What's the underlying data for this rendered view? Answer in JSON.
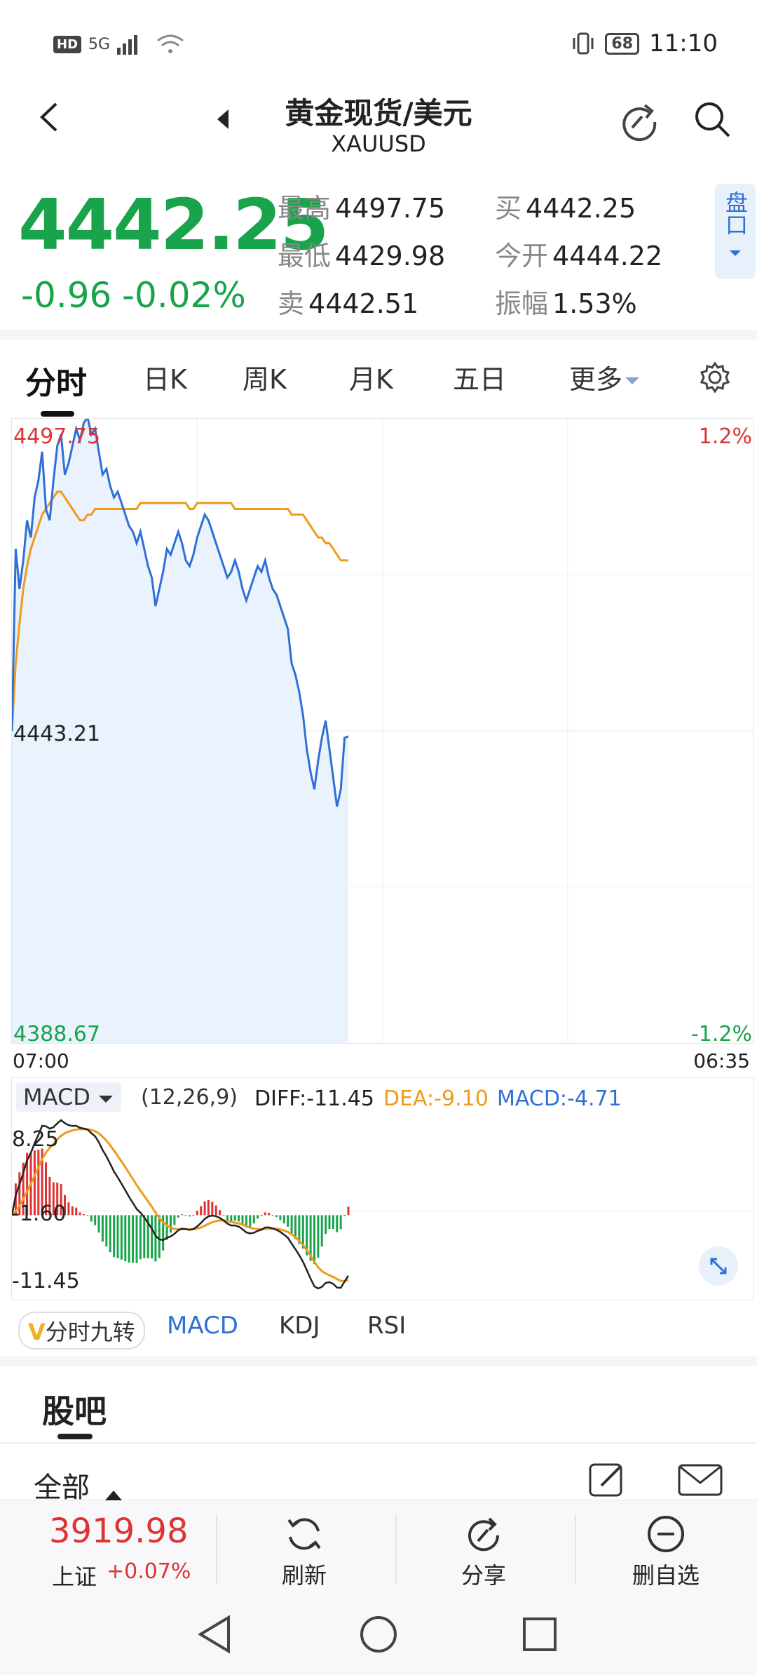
{
  "status_bar": {
    "network": "HD",
    "signal": "5G",
    "battery": "68",
    "time": "11:10"
  },
  "header": {
    "title": "黄金现货/美元",
    "symbol": "XAUUSD"
  },
  "quote": {
    "price": "4442.25",
    "change": "-0.96",
    "change_pct": "-0.02%",
    "high_label": "最高",
    "high": "4497.75",
    "low_label": "最低",
    "low": "4429.98",
    "sell_label": "卖",
    "sell": "4442.51",
    "buy_label": "买",
    "buy": "4442.25",
    "open_label": "今开",
    "open": "4444.22",
    "amp_label": "振幅",
    "amp": "1.53%",
    "pankou_label": "盘口"
  },
  "tabs": [
    "分时",
    "日K",
    "周K",
    "月K",
    "五日",
    "更多"
  ],
  "chart": {
    "y_top": "4497.75",
    "y_mid": "4443.21",
    "y_bottom": "4388.67",
    "pct_top": "1.2%",
    "pct_bottom": "-1.2%",
    "x_start": "07:00",
    "x_end": "06:35",
    "colors": {
      "price_line": "#2f6fd6",
      "avg_line": "#f09a1a",
      "fill": "#eaf2fd",
      "up": "#d33",
      "down": "#19a34a"
    }
  },
  "chart_data": {
    "type": "line",
    "ylim": [
      4388.67,
      4497.75
    ],
    "series": [
      {
        "values": [
          4443.2,
          4475,
          4468,
          4473,
          4480,
          4477,
          4484,
          4487,
          4492,
          4482,
          4480,
          4487,
          4493,
          4495,
          4488,
          4490,
          4493,
          4496,
          4494,
          4497,
          4498,
          4495,
          4496,
          4492,
          4488,
          4489,
          4486,
          4484,
          4485,
          4483,
          4481,
          4479,
          4478,
          4476,
          4478,
          4475,
          4472,
          4470,
          4465,
          4468,
          4471,
          4475,
          4474,
          4476,
          4478,
          4476,
          4473,
          4472,
          4474,
          4477,
          4479,
          4481,
          4480,
          4478,
          4476,
          4474,
          4472,
          4470,
          4471,
          4473,
          4471,
          4468,
          4466,
          4468,
          4470,
          4472,
          4471,
          4473,
          4470,
          4468,
          4467,
          4465,
          4463,
          4461,
          4455,
          4453,
          4450,
          4446,
          4440,
          4436,
          4433,
          4438,
          4442,
          4445,
          4440,
          4435,
          4430,
          4433,
          4442,
          4442.25
        ]
      },
      {
        "values": [
          4443.2,
          4455,
          4462,
          4468,
          4472,
          4475,
          4477,
          4479,
          4481,
          4482,
          4483,
          4484,
          4485,
          4485,
          4484,
          4483,
          4482,
          4481,
          4480,
          4480,
          4481,
          4481,
          4482,
          4482,
          4482,
          4482,
          4482,
          4482,
          4482,
          4482,
          4482,
          4482,
          4482,
          4482,
          4483,
          4483,
          4483,
          4483,
          4483,
          4483,
          4483,
          4483,
          4483,
          4483,
          4483,
          4483,
          4483,
          4482,
          4482,
          4483,
          4483,
          4483,
          4483,
          4483,
          4483,
          4483,
          4483,
          4483,
          4483,
          4482,
          4482,
          4482,
          4482,
          4482,
          4482,
          4482,
          4482,
          4482,
          4482,
          4482,
          4482,
          4482,
          4482,
          4482,
          4481,
          4481,
          4481,
          4481,
          4480,
          4479,
          4478,
          4477,
          4477,
          4476,
          4476,
          4475,
          4474,
          4473,
          4473,
          4473
        ]
      }
    ]
  },
  "macd": {
    "label": "MACD",
    "params": "(12,26,9)",
    "diff": "DIFF:-11.45",
    "dea": "DEA:-9.10",
    "macd": "MACD:-4.71",
    "y_top": "8.25",
    "y_mid": "-1.60",
    "y_bottom": "-11.45",
    "colors": {
      "diff": "#222222",
      "dea": "#f09a1a",
      "macd_label": "#2f6fd6"
    }
  },
  "indicator_tabs": {
    "jiuzhuan": "分时九转",
    "macd": "MACD",
    "kdj": "KDJ",
    "rsi": "RSI"
  },
  "forum": {
    "title": "股吧",
    "filter": "全部"
  },
  "footer": {
    "index_value": "3919.98",
    "index_name": "上证",
    "index_change": "+0.07%",
    "refresh": "刷新",
    "share": "分享",
    "remove": "删自选"
  }
}
